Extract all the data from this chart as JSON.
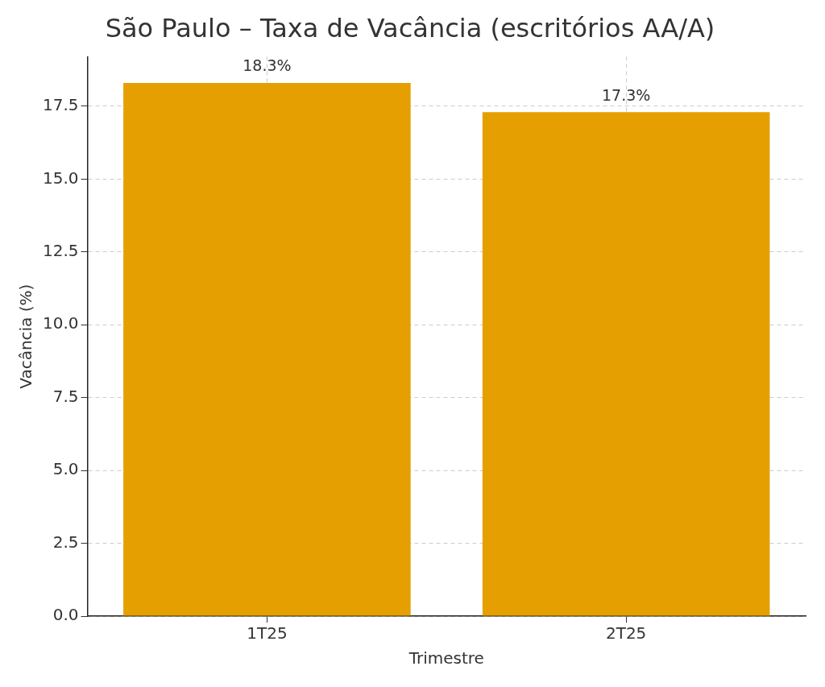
{
  "chart_data": {
    "type": "bar",
    "title": "São Paulo – Taxa de Vacância (escritórios AA/A)",
    "xlabel": "Trimestre",
    "ylabel": "Vacância (%)",
    "categories": [
      "1T25",
      "2T25"
    ],
    "values": [
      18.3,
      17.3
    ],
    "value_labels": [
      "18.3%",
      "17.3%"
    ],
    "color": "#e69f00",
    "ylim": [
      0,
      19.2
    ],
    "yticks": [
      {
        "value": 0,
        "label": "0.0"
      },
      {
        "value": 2.5,
        "label": "2.5"
      },
      {
        "value": 5,
        "label": "5.0"
      },
      {
        "value": 7.5,
        "label": "7.5"
      },
      {
        "value": 10,
        "label": "10.0"
      },
      {
        "value": 12.5,
        "label": "12.5"
      },
      {
        "value": 15,
        "label": "15.0"
      },
      {
        "value": 17.5,
        "label": "17.5"
      }
    ],
    "grid": true
  }
}
